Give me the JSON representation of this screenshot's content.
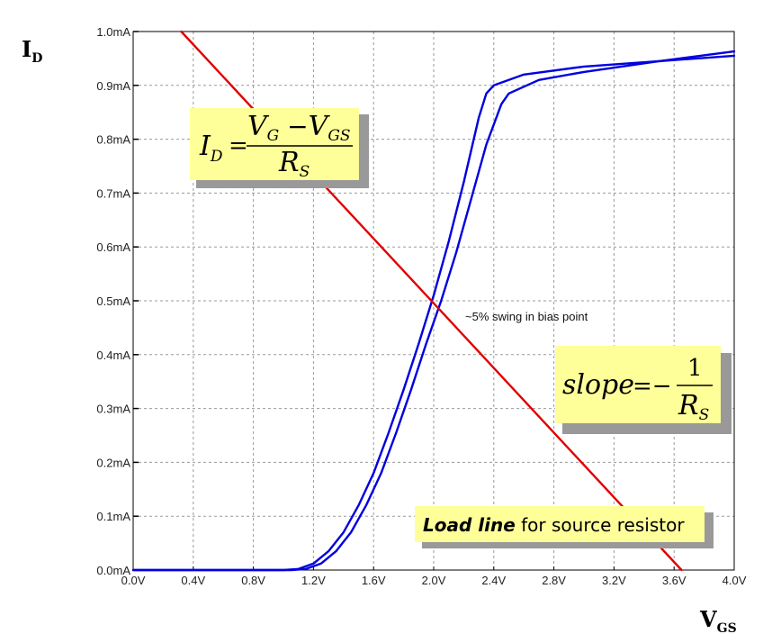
{
  "chart_data": {
    "type": "line",
    "xlabel": "V",
    "xlabel_sub": "GS",
    "ylabel": "I",
    "ylabel_sub": "D",
    "xlim": [
      0.0,
      4.0
    ],
    "ylim": [
      0.0,
      1.0
    ],
    "x_ticks": [
      "0.0V",
      "0.4V",
      "0.8V",
      "1.2V",
      "1.6V",
      "2.0V",
      "2.4V",
      "2.8V",
      "3.2V",
      "3.6V",
      "4.0V"
    ],
    "y_ticks": [
      "0.0mA",
      "0.1mA",
      "0.2mA",
      "0.3mA",
      "0.4mA",
      "0.5mA",
      "0.6mA",
      "0.7mA",
      "0.8mA",
      "0.9mA",
      "1.0mA"
    ],
    "grid": true,
    "series": [
      {
        "color": "#0000e0",
        "x": [
          0.0,
          1.0,
          1.1,
          1.2,
          1.3,
          1.4,
          1.5,
          1.6,
          1.7,
          1.8,
          1.9,
          2.0,
          2.1,
          2.2,
          2.3,
          2.35,
          2.4,
          2.6,
          3.0,
          3.5,
          4.0
        ],
        "y": [
          0.0,
          0.0,
          0.002,
          0.012,
          0.035,
          0.07,
          0.12,
          0.18,
          0.255,
          0.335,
          0.42,
          0.51,
          0.61,
          0.72,
          0.84,
          0.885,
          0.9,
          0.92,
          0.935,
          0.945,
          0.955
        ]
      },
      {
        "color": "#0000e0",
        "x": [
          0.0,
          1.05,
          1.15,
          1.25,
          1.35,
          1.45,
          1.55,
          1.65,
          1.75,
          1.85,
          1.95,
          2.05,
          2.15,
          2.25,
          2.35,
          2.45,
          2.5,
          2.7,
          3.0,
          3.5,
          4.0
        ],
        "y": [
          0.0,
          0.0,
          0.002,
          0.012,
          0.035,
          0.07,
          0.12,
          0.18,
          0.255,
          0.335,
          0.42,
          0.5,
          0.59,
          0.69,
          0.79,
          0.865,
          0.885,
          0.91,
          0.925,
          0.945,
          0.963
        ]
      },
      {
        "color": "#e00000",
        "x": [
          0.32,
          3.65
        ],
        "y": [
          1.0,
          0.0
        ]
      }
    ],
    "annotations": {
      "swing_text": "~5% swing in bias point",
      "load_line_bold": "Load line",
      "load_line_rest": " for source resistor"
    },
    "equations": {
      "id_lhs": "I",
      "id_lhs_sub": "D",
      "id_num_a": "V",
      "id_num_a_sub": "G",
      "id_num_b": "V",
      "id_num_b_sub": "GS",
      "id_den": "R",
      "id_den_sub": "S",
      "slope_lhs": "slope",
      "slope_num": "1",
      "slope_den": "R",
      "slope_den_sub": "S"
    },
    "colors": {
      "curve": "#0000e0",
      "load_line": "#e00000",
      "callout_fill": "#ffff99",
      "grid": "#9a9a9a"
    }
  }
}
